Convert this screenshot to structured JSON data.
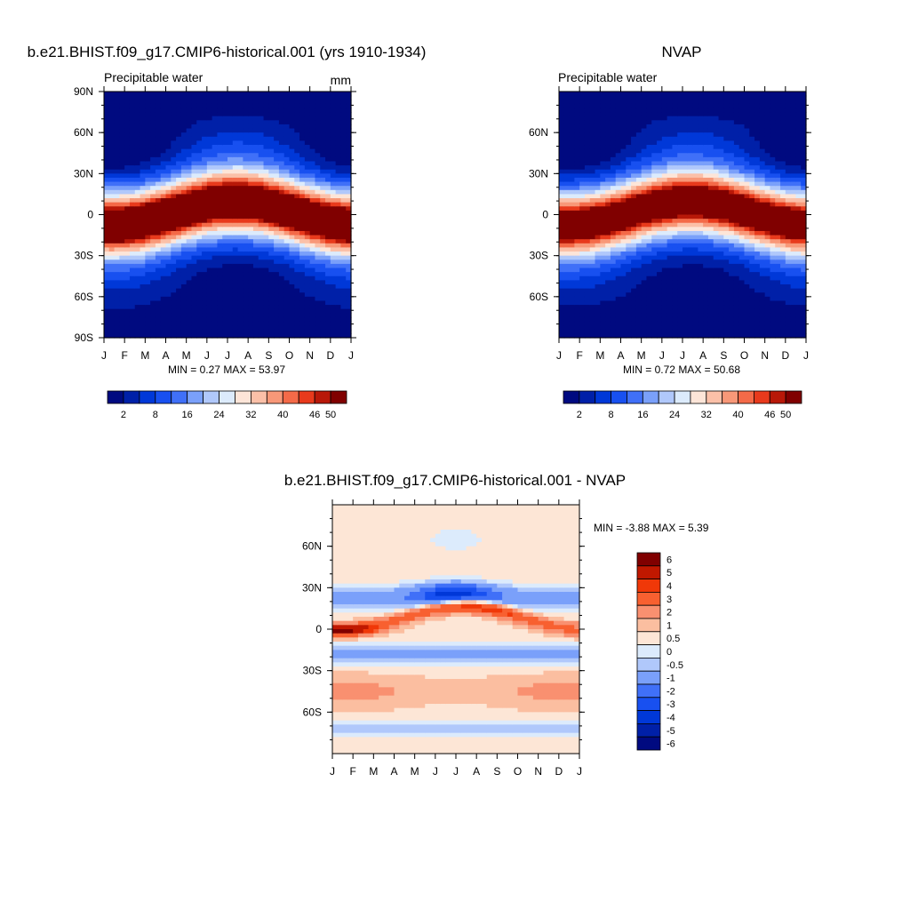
{
  "page": {
    "background": "#ffffff"
  },
  "panels": [
    {
      "id": "model",
      "title": "b.e21.BHIST.f09_g17.CMIP6-historical.001 (yrs 1910-1934)",
      "left_label": "Precipitable water",
      "right_label": "mm",
      "stats": "MIN =   0.27 MAX =  53.97",
      "x_ticks": [
        "J",
        "F",
        "M",
        "A",
        "M",
        "J",
        "J",
        "A",
        "S",
        "O",
        "N",
        "D",
        "J"
      ],
      "y_ticks": [
        "90N",
        "60N",
        "30N",
        "0",
        "30S",
        "60S",
        "90S"
      ]
    },
    {
      "id": "obs",
      "title": "NVAP",
      "left_label": "Precipitable water",
      "right_label": "",
      "stats": "MIN =   0.72 MAX =  50.68",
      "x_ticks": [
        "J",
        "F",
        "M",
        "A",
        "M",
        "J",
        "J",
        "A",
        "S",
        "O",
        "N",
        "D",
        "J"
      ],
      "y_ticks": [
        "60N",
        "30N",
        "0",
        "30S",
        "60S"
      ]
    },
    {
      "id": "diff",
      "title": "b.e21.BHIST.f09_g17.CMIP6-historical.001 - NVAP",
      "left_label": "",
      "right_label": "",
      "stats": "MIN =  -3.88 MAX =   5.39",
      "x_ticks": [
        "J",
        "F",
        "M",
        "A",
        "M",
        "J",
        "J",
        "A",
        "S",
        "O",
        "N",
        "D",
        "J"
      ],
      "y_ticks": [
        "60N",
        "30N",
        "0",
        "30S",
        "60S"
      ]
    }
  ],
  "colorbars": {
    "abs": {
      "orientation": "horizontal",
      "colors": [
        "#000a80",
        "#0020a8",
        "#0038d8",
        "#1850f0",
        "#4070f8",
        "#7aa0fa",
        "#b0c8fb",
        "#dcebfc",
        "#fde5d8",
        "#fbc0a8",
        "#f89878",
        "#f46a48",
        "#e83a1c",
        "#b81808",
        "#800000"
      ],
      "labels": [
        "2",
        "8",
        "16",
        "24",
        "32",
        "40",
        "46",
        "50"
      ]
    },
    "diff": {
      "orientation": "vertical",
      "colors": [
        "#800000",
        "#c01800",
        "#f03808",
        "#f86030",
        "#f99070",
        "#fbbea0",
        "#fde6d6",
        "#dcebfc",
        "#b0c8fb",
        "#7aa0fa",
        "#4070f8",
        "#1850f0",
        "#0038d8",
        "#0020a8",
        "#000a80"
      ],
      "labels": [
        "6",
        "5",
        "4",
        "3",
        "2",
        "1",
        "0.5",
        "0",
        "-0.5",
        "-1",
        "-2",
        "-3",
        "-4",
        "-5",
        "-6"
      ]
    }
  },
  "chart_data": [
    {
      "type": "heatmap",
      "title": "b.e21.BHIST.f09_g17.CMIP6-historical.001 (yrs 1910-1934)",
      "subtitle_left": "Precipitable water",
      "units": "mm",
      "x_categories": [
        "J",
        "F",
        "M",
        "A",
        "M",
        "J",
        "J",
        "A",
        "S",
        "O",
        "N",
        "D",
        "J"
      ],
      "y_ticks": [
        "90N",
        "60N",
        "30N",
        "0",
        "30S",
        "60S",
        "90S"
      ],
      "ylim": [
        -90,
        90
      ],
      "min": 0.27,
      "max": 53.97,
      "levels": [
        2,
        5,
        8,
        12,
        16,
        20,
        24,
        28,
        32,
        36,
        40,
        43,
        46,
        48,
        50
      ],
      "field": "precipitable water annual cycle by latitude"
    },
    {
      "type": "heatmap",
      "title": "NVAP",
      "subtitle_left": "Precipitable water",
      "x_categories": [
        "J",
        "F",
        "M",
        "A",
        "M",
        "J",
        "J",
        "A",
        "S",
        "O",
        "N",
        "D",
        "J"
      ],
      "y_ticks": [
        "60N",
        "30N",
        "0",
        "30S",
        "60S"
      ],
      "ylim": [
        -90,
        90
      ],
      "min": 0.72,
      "max": 50.68,
      "levels": [
        2,
        5,
        8,
        12,
        16,
        20,
        24,
        28,
        32,
        36,
        40,
        43,
        46,
        48,
        50
      ]
    },
    {
      "type": "heatmap",
      "title": "b.e21.BHIST.f09_g17.CMIP6-historical.001 - NVAP",
      "x_categories": [
        "J",
        "F",
        "M",
        "A",
        "M",
        "J",
        "J",
        "A",
        "S",
        "O",
        "N",
        "D",
        "J"
      ],
      "y_ticks": [
        "60N",
        "30N",
        "0",
        "30S",
        "60S"
      ],
      "ylim": [
        -90,
        90
      ],
      "min": -3.88,
      "max": 5.39,
      "levels": [
        -6,
        -5,
        -4,
        -3,
        -2,
        -1,
        -0.5,
        0,
        0.5,
        1,
        2,
        3,
        4,
        5,
        6
      ]
    }
  ]
}
